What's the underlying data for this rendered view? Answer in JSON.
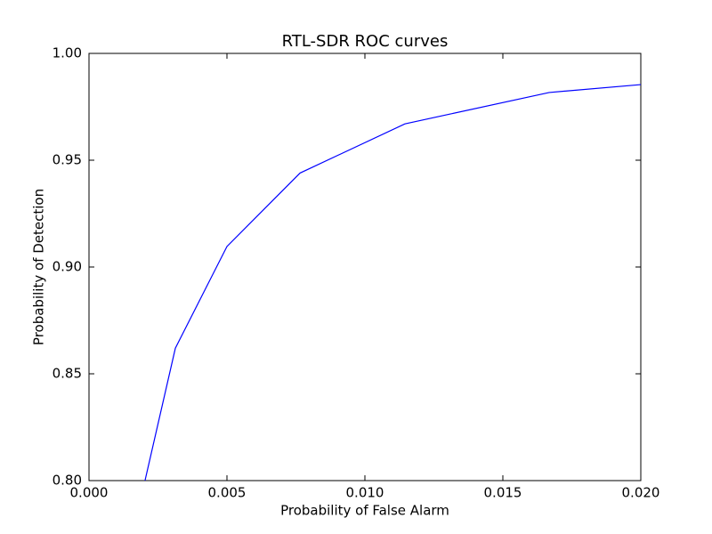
{
  "chart_data": {
    "type": "line",
    "title": "RTL-SDR ROC curves",
    "x_label": "Probability of False Alarm",
    "y_label": "Probability of Detection",
    "x": [
      0.00203,
      0.00313,
      0.005,
      0.00765,
      0.01145,
      0.01668,
      0.02
    ],
    "series": [
      {
        "color": "#0000ff",
        "values": [
          0.8,
          0.862,
          0.9096,
          0.944,
          0.967,
          0.9817,
          0.9854
        ]
      }
    ],
    "xlim": [
      0,
      0.02
    ],
    "ylim": [
      0.8,
      1.0
    ],
    "xticks": [
      {
        "value": 0,
        "label": "0.000"
      },
      {
        "value": 0.005,
        "label": "0.005"
      },
      {
        "value": 0.01,
        "label": "0.010"
      },
      {
        "value": 0.015,
        "label": "0.015"
      },
      {
        "value": 0.02,
        "label": "0.020"
      }
    ],
    "yticks": [
      {
        "value": 0.8,
        "label": "0.80"
      },
      {
        "value": 0.85,
        "label": "0.85"
      },
      {
        "value": 0.9,
        "label": "0.90"
      },
      {
        "value": 0.95,
        "label": "0.95"
      },
      {
        "value": 1.0,
        "label": "1.00"
      }
    ]
  }
}
